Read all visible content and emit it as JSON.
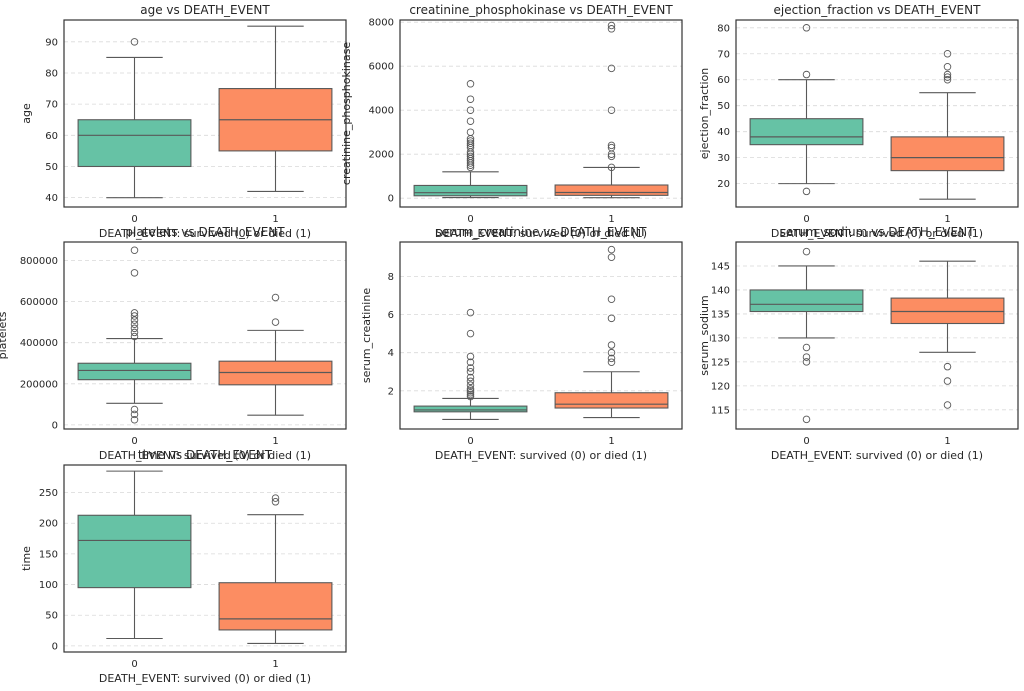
{
  "figure": {
    "background": "#ffffff",
    "grid_color": "#d9d9d9",
    "frame_color": "#333333"
  },
  "colors": {
    "group0": "#66c2a5",
    "group1": "#fc8d62",
    "line": "#595959"
  },
  "chart_data": [
    {
      "type": "box",
      "title": "age vs DEATH_EVENT",
      "xlabel": "DEATH_EVENT: survived (0) or died (1)",
      "ylabel": "age",
      "ylim": [
        37,
        97
      ],
      "yticks": [
        40,
        50,
        60,
        70,
        80,
        90
      ],
      "ytick_labels": [
        "40",
        "50",
        "60",
        "70",
        "80",
        "90"
      ],
      "categories": [
        "0",
        "1"
      ],
      "grid": true,
      "boxes": [
        {
          "category": "0",
          "q1": 50,
          "median": 60,
          "q3": 65,
          "whislo": 40,
          "whishi": 85,
          "fliers": [
            90
          ]
        },
        {
          "category": "1",
          "q1": 55,
          "median": 65,
          "q3": 75,
          "whislo": 42,
          "whishi": 95,
          "fliers": []
        }
      ]
    },
    {
      "type": "box",
      "title": "creatinine_phosphokinase vs DEATH_EVENT",
      "xlabel": "DEATH_EVENT: survived (0) or died (1)",
      "ylabel": "creatinine_phosphokinase",
      "ylim": [
        -400,
        8100
      ],
      "yticks": [
        0,
        2000,
        4000,
        6000,
        8000
      ],
      "ytick_labels": [
        "0",
        "2000",
        "4000",
        "6000",
        "8000"
      ],
      "categories": [
        "0",
        "1"
      ],
      "grid": true,
      "boxes": [
        {
          "category": "0",
          "q1": 110,
          "median": 250,
          "q3": 580,
          "whislo": 30,
          "whishi": 1200,
          "fliers": [
            1400,
            1500,
            1600,
            1700,
            1800,
            1900,
            2000,
            2100,
            2300,
            2400,
            2500,
            2600,
            2700,
            3000,
            3500,
            4000,
            4500,
            5200
          ]
        },
        {
          "category": "1",
          "q1": 130,
          "median": 260,
          "q3": 600,
          "whislo": 25,
          "whishi": 1400,
          "fliers": [
            1400,
            1900,
            2000,
            2300,
            2400,
            4000,
            5900,
            7700,
            7850
          ]
        }
      ]
    },
    {
      "type": "box",
      "title": "ejection_fraction vs DEATH_EVENT",
      "xlabel": "DEATH_EVENT: survived (0) or died (1)",
      "ylabel": "ejection_fraction",
      "ylim": [
        11,
        83
      ],
      "yticks": [
        20,
        30,
        40,
        50,
        60,
        70,
        80
      ],
      "ytick_labels": [
        "20",
        "30",
        "40",
        "50",
        "60",
        "70",
        "80"
      ],
      "categories": [
        "0",
        "1"
      ],
      "grid": true,
      "boxes": [
        {
          "category": "0",
          "q1": 35,
          "median": 38,
          "q3": 45,
          "whislo": 20,
          "whishi": 60,
          "fliers": [
            17,
            62,
            80
          ]
        },
        {
          "category": "1",
          "q1": 25,
          "median": 30,
          "q3": 38,
          "whislo": 14,
          "whishi": 55,
          "fliers": [
            60,
            61,
            62,
            65,
            70
          ]
        }
      ]
    },
    {
      "type": "box",
      "title": "platelets vs DEATH_EVENT",
      "xlabel": "DEATH_EVENT: survived (0) or died (1)",
      "ylabel": "platelets",
      "ylim": [
        -20000,
        890000
      ],
      "yticks": [
        0,
        200000,
        400000,
        600000,
        800000
      ],
      "ytick_labels": [
        "0",
        "200000",
        "400000",
        "600000",
        "800000"
      ],
      "categories": [
        "0",
        "1"
      ],
      "grid": true,
      "boxes": [
        {
          "category": "0",
          "q1": 220000,
          "median": 265000,
          "q3": 300000,
          "whislo": 105000,
          "whishi": 420000,
          "fliers": [
            25000,
            51000,
            75000,
            430000,
            450000,
            470000,
            490000,
            510000,
            530000,
            545000,
            740000,
            850000
          ]
        },
        {
          "category": "1",
          "q1": 195000,
          "median": 255000,
          "q3": 310000,
          "whislo": 47000,
          "whishi": 460000,
          "fliers": [
            500000,
            620000
          ]
        }
      ]
    },
    {
      "type": "box",
      "title": "serum_creatinine vs DEATH_EVENT",
      "xlabel": "DEATH_EVENT: survived (0) or died (1)",
      "ylabel": "serum_creatinine",
      "ylim": [
        0,
        9.8
      ],
      "yticks": [
        2,
        4,
        6,
        8
      ],
      "ytick_labels": [
        "2",
        "4",
        "6",
        "8"
      ],
      "categories": [
        "0",
        "1"
      ],
      "grid": true,
      "boxes": [
        {
          "category": "0",
          "q1": 0.9,
          "median": 1.0,
          "q3": 1.2,
          "whislo": 0.5,
          "whishi": 1.6,
          "fliers": [
            1.7,
            1.8,
            1.9,
            2.0,
            2.1,
            2.3,
            2.5,
            2.7,
            3.0,
            3.2,
            3.5,
            3.8,
            5.0,
            6.1
          ]
        },
        {
          "category": "1",
          "q1": 1.1,
          "median": 1.3,
          "q3": 1.9,
          "whislo": 0.6,
          "whishi": 3.0,
          "fliers": [
            3.5,
            3.7,
            4.0,
            4.4,
            5.8,
            6.8,
            9.0,
            9.4
          ]
        }
      ]
    },
    {
      "type": "box",
      "title": "serum_sodium vs DEATH_EVENT",
      "xlabel": "DEATH_EVENT: survived (0) or died (1)",
      "ylabel": "serum_sodium",
      "ylim": [
        111,
        150
      ],
      "yticks": [
        115,
        120,
        125,
        130,
        135,
        140,
        145
      ],
      "ytick_labels": [
        "115",
        "120",
        "125",
        "130",
        "135",
        "140",
        "145"
      ],
      "categories": [
        "0",
        "1"
      ],
      "grid": true,
      "boxes": [
        {
          "category": "0",
          "q1": 135.5,
          "median": 137,
          "q3": 140,
          "whislo": 130,
          "whishi": 145,
          "fliers": [
            113,
            125,
            126,
            128,
            148
          ]
        },
        {
          "category": "1",
          "q1": 133,
          "median": 135.5,
          "q3": 138.3,
          "whislo": 127,
          "whishi": 146,
          "fliers": [
            116,
            121,
            124
          ]
        }
      ]
    },
    {
      "type": "box",
      "title": "time vs DEATH_EVENT",
      "xlabel": "DEATH_EVENT: survived (0) or died (1)",
      "ylabel": "time",
      "ylim": [
        -10,
        295
      ],
      "yticks": [
        0,
        50,
        100,
        150,
        200,
        250
      ],
      "ytick_labels": [
        "0",
        "50",
        "100",
        "150",
        "200",
        "250"
      ],
      "categories": [
        "0",
        "1"
      ],
      "grid": true,
      "boxes": [
        {
          "category": "0",
          "q1": 95,
          "median": 172,
          "q3": 213,
          "whislo": 12,
          "whishi": 285,
          "fliers": []
        },
        {
          "category": "1",
          "q1": 26,
          "median": 44,
          "q3": 103,
          "whislo": 4,
          "whishi": 214,
          "fliers": [
            235,
            241
          ]
        }
      ]
    }
  ]
}
